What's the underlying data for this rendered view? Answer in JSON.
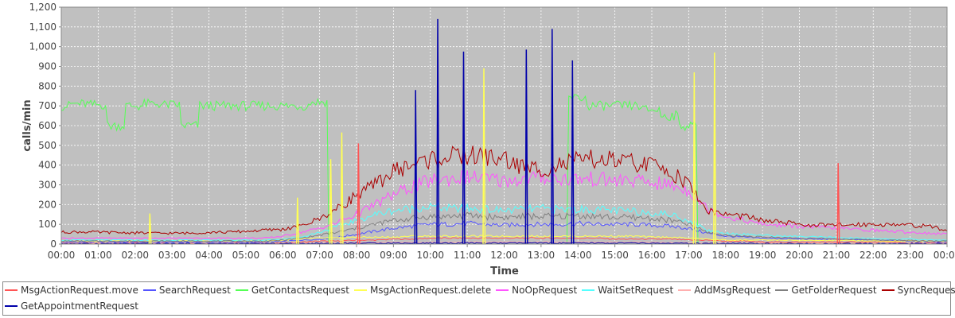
{
  "chart_data": {
    "type": "line",
    "title": "",
    "xlabel": "Time",
    "ylabel": "calls/min",
    "ylim": [
      0,
      1200
    ],
    "yticks": [
      0,
      100,
      200,
      300,
      400,
      500,
      600,
      700,
      800,
      900,
      1000,
      1100,
      1200
    ],
    "ytick_labels": [
      "0",
      "100",
      "200",
      "300",
      "400",
      "500",
      "600",
      "700",
      "800",
      "900",
      "1,000",
      "1,100",
      "1,200"
    ],
    "xlim": [
      0,
      24
    ],
    "xtick_labels": [
      "00:00",
      "01:00",
      "02:00",
      "03:00",
      "04:00",
      "05:00",
      "06:00",
      "07:00",
      "08:00",
      "09:00",
      "10:00",
      "11:00",
      "12:00",
      "13:00",
      "14:00",
      "15:00",
      "16:00",
      "17:00",
      "18:00",
      "19:00",
      "20:00",
      "21:00",
      "22:00",
      "23:00",
      "00:00"
    ],
    "grid": true,
    "legend_position": "bottom",
    "plot_background": "#c0c0c0",
    "x_hours": [
      0,
      0.5,
      1,
      1.5,
      2,
      2.5,
      3,
      3.5,
      4,
      4.5,
      5,
      5.5,
      6,
      6.5,
      7,
      7.5,
      8,
      8.5,
      9,
      9.5,
      10,
      10.5,
      11,
      11.5,
      12,
      12.5,
      13,
      13.5,
      14,
      14.5,
      15,
      15.5,
      16,
      16.5,
      17,
      17.5,
      18,
      18.5,
      19,
      19.5,
      20,
      20.5,
      21,
      21.5,
      22,
      22.5,
      23,
      23.5,
      24
    ],
    "series": [
      {
        "name": "MsgActionRequest.move",
        "color": "#ff5555",
        "values": [
          5,
          5,
          5,
          5,
          5,
          5,
          5,
          5,
          5,
          5,
          5,
          5,
          5,
          10,
          15,
          15,
          20,
          20,
          25,
          25,
          30,
          30,
          30,
          30,
          30,
          30,
          30,
          30,
          30,
          30,
          25,
          25,
          25,
          25,
          20,
          20,
          15,
          15,
          10,
          10,
          10,
          10,
          10,
          10,
          10,
          10,
          5,
          5,
          5
        ]
      },
      {
        "name": "SearchRequest",
        "color": "#5555ff",
        "values": [
          10,
          10,
          10,
          10,
          10,
          10,
          10,
          10,
          10,
          10,
          10,
          10,
          15,
          20,
          25,
          35,
          50,
          65,
          80,
          90,
          100,
          100,
          105,
          100,
          95,
          100,
          100,
          100,
          105,
          100,
          100,
          100,
          95,
          90,
          80,
          55,
          40,
          35,
          30,
          28,
          26,
          25,
          24,
          22,
          20,
          18,
          15,
          12,
          10
        ]
      },
      {
        "name": "GetContactsRequest",
        "color": "#55ff55",
        "values": [
          700,
          710,
          705,
          600,
          700,
          710,
          705,
          600,
          700,
          700,
          700,
          700,
          700,
          700,
          720,
          0,
          0,
          0,
          0,
          0,
          0,
          0,
          0,
          0,
          0,
          0,
          0,
          0,
          740,
          700,
          700,
          700,
          680,
          650,
          600,
          0,
          0,
          0,
          0,
          0,
          0,
          0,
          0,
          0,
          0,
          0,
          0,
          0,
          0
        ]
      },
      {
        "name": "MsgActionRequest.delete",
        "color": "#ffff55",
        "values": [
          15,
          15,
          15,
          15,
          15,
          15,
          15,
          15,
          15,
          15,
          15,
          15,
          20,
          25,
          30,
          30,
          35,
          35,
          35,
          40,
          40,
          40,
          40,
          40,
          40,
          40,
          40,
          40,
          40,
          40,
          40,
          40,
          35,
          35,
          30,
          25,
          20,
          20,
          20,
          20,
          18,
          18,
          18,
          18,
          15,
          15,
          15,
          15,
          15
        ]
      },
      {
        "name": "NoOpRequest",
        "color": "#ff55ff",
        "values": [
          30,
          30,
          30,
          30,
          30,
          30,
          30,
          30,
          30,
          30,
          30,
          30,
          40,
          60,
          80,
          110,
          150,
          200,
          250,
          290,
          320,
          330,
          340,
          330,
          320,
          330,
          340,
          330,
          330,
          330,
          320,
          320,
          310,
          300,
          270,
          180,
          140,
          120,
          100,
          95,
          90,
          85,
          80,
          75,
          70,
          65,
          60,
          55,
          50
        ]
      },
      {
        "name": "WaitSetRequest",
        "color": "#55ffff",
        "values": [
          20,
          20,
          20,
          20,
          20,
          20,
          20,
          20,
          20,
          20,
          20,
          20,
          25,
          35,
          60,
          90,
          120,
          150,
          170,
          180,
          190,
          180,
          180,
          175,
          170,
          175,
          180,
          175,
          175,
          175,
          170,
          165,
          160,
          150,
          120,
          70,
          55,
          50,
          45,
          40,
          38,
          35,
          33,
          30,
          28,
          26,
          24,
          22,
          20
        ]
      },
      {
        "name": "AddMsgRequest",
        "color": "#ffafaf",
        "values": [
          3,
          3,
          3,
          3,
          3,
          3,
          3,
          3,
          3,
          3,
          3,
          3,
          4,
          5,
          6,
          7,
          8,
          8,
          9,
          9,
          10,
          10,
          10,
          10,
          10,
          10,
          10,
          10,
          10,
          10,
          9,
          9,
          9,
          8,
          7,
          6,
          5,
          5,
          5,
          4,
          4,
          4,
          4,
          4,
          3,
          3,
          3,
          3,
          3
        ]
      },
      {
        "name": "GetFolderRequest",
        "color": "#808080",
        "values": [
          15,
          15,
          15,
          15,
          15,
          15,
          15,
          15,
          15,
          15,
          15,
          15,
          20,
          30,
          45,
          60,
          80,
          100,
          120,
          130,
          140,
          140,
          145,
          140,
          135,
          140,
          140,
          140,
          145,
          140,
          135,
          135,
          130,
          120,
          100,
          60,
          45,
          40,
          35,
          33,
          30,
          28,
          26,
          24,
          22,
          20,
          18,
          16,
          15
        ]
      },
      {
        "name": "SyncRequest",
        "color": "#aa0000",
        "values": [
          60,
          62,
          60,
          58,
          57,
          55,
          55,
          55,
          60,
          60,
          65,
          70,
          75,
          90,
          130,
          180,
          250,
          300,
          370,
          400,
          430,
          440,
          450,
          440,
          430,
          390,
          380,
          400,
          420,
          430,
          420,
          410,
          400,
          370,
          300,
          170,
          150,
          140,
          120,
          110,
          100,
          95,
          95,
          100,
          100,
          100,
          95,
          90,
          70
        ]
      },
      {
        "name": "GetAppointmentRequest",
        "color": "#0000aa",
        "values": [
          2,
          2,
          2,
          2,
          2,
          2,
          2,
          2,
          2,
          2,
          2,
          2,
          3,
          3,
          4,
          4,
          5,
          5,
          5,
          5,
          5,
          5,
          5,
          5,
          5,
          5,
          5,
          5,
          5,
          5,
          5,
          5,
          4,
          4,
          3,
          3,
          3,
          3,
          3,
          2,
          2,
          2,
          2,
          2,
          2,
          2,
          2,
          2,
          2
        ]
      }
    ],
    "spikes": [
      {
        "series": "GetAppointmentRequest",
        "x": 9.6,
        "y": 780
      },
      {
        "series": "GetAppointmentRequest",
        "x": 10.2,
        "y": 1140
      },
      {
        "series": "GetAppointmentRequest",
        "x": 10.9,
        "y": 975
      },
      {
        "series": "GetAppointmentRequest",
        "x": 12.6,
        "y": 985
      },
      {
        "series": "GetAppointmentRequest",
        "x": 13.3,
        "y": 1090
      },
      {
        "series": "GetAppointmentRequest",
        "x": 13.85,
        "y": 930
      },
      {
        "series": "MsgActionRequest.delete",
        "x": 11.45,
        "y": 890
      },
      {
        "series": "MsgActionRequest.delete",
        "x": 17.15,
        "y": 870
      },
      {
        "series": "MsgActionRequest.delete",
        "x": 17.7,
        "y": 970
      },
      {
        "series": "MsgActionRequest.delete",
        "x": 7.6,
        "y": 565
      },
      {
        "series": "MsgActionRequest.delete",
        "x": 7.3,
        "y": 430
      },
      {
        "series": "MsgActionRequest.delete",
        "x": 2.4,
        "y": 155
      },
      {
        "series": "MsgActionRequest.delete",
        "x": 6.4,
        "y": 235
      },
      {
        "series": "MsgActionRequest.move",
        "x": 8.05,
        "y": 510
      },
      {
        "series": "MsgActionRequest.move",
        "x": 21.05,
        "y": 410
      }
    ]
  },
  "legend_rows": [
    [
      0,
      1,
      2,
      3,
      4,
      5,
      6,
      7,
      8
    ],
    [
      9
    ]
  ]
}
